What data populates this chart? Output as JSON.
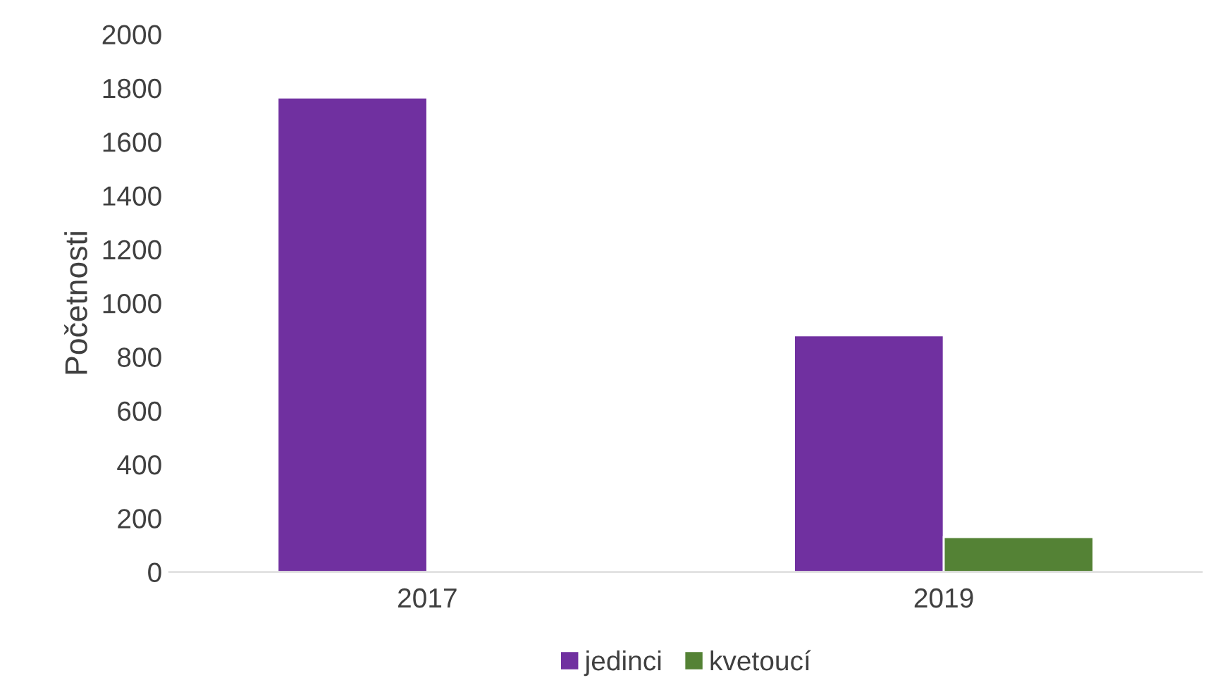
{
  "chart_data": {
    "type": "bar",
    "ylabel": "Početnosti",
    "categories": [
      "2017",
      "2019"
    ],
    "series": [
      {
        "name": "jedinci",
        "color": "#7030a0",
        "values": [
          1765,
          880
        ]
      },
      {
        "name": "kvetoucí",
        "color": "#548235",
        "values": [
          null,
          130
        ]
      }
    ],
    "ylim": [
      0,
      2000
    ],
    "yticks": [
      0,
      200,
      400,
      600,
      800,
      1000,
      1200,
      1400,
      1600,
      1800,
      2000
    ],
    "grid": false,
    "legend": "bottom"
  }
}
